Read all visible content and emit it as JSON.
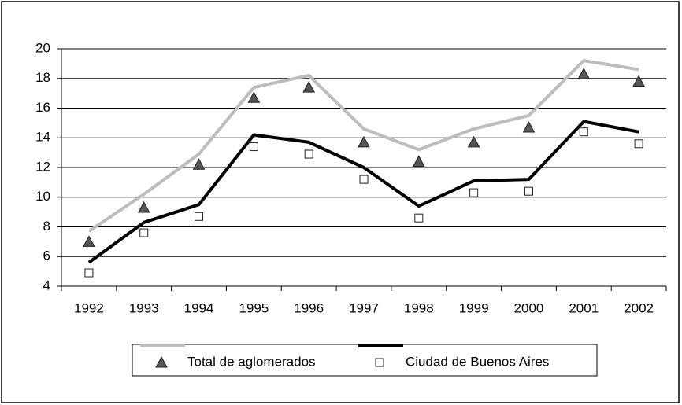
{
  "chart_data": {
    "type": "line",
    "categories": [
      "1992",
      "1993",
      "1994",
      "1995",
      "1996",
      "1997",
      "1998",
      "1999",
      "2000",
      "2001",
      "2002"
    ],
    "series": [
      {
        "color": "#bdbdbd",
        "values": [
          7.7,
          10.2,
          12.9,
          17.4,
          18.2,
          14.6,
          13.2,
          14.6,
          15.5,
          19.2,
          18.6
        ]
      },
      {
        "color": "#000000",
        "values": [
          5.6,
          8.3,
          9.5,
          14.2,
          13.7,
          12.0,
          9.4,
          11.1,
          11.2,
          15.1,
          14.4
        ]
      },
      {
        "name": "Total de aglomerados",
        "marker": "triangle",
        "color": "#555555",
        "values": [
          7.0,
          9.3,
          12.2,
          16.7,
          17.4,
          13.7,
          12.4,
          13.7,
          14.7,
          18.3,
          17.8
        ]
      },
      {
        "name": "Ciudad de Buenos Aires",
        "marker": "square",
        "color": "#ffffff",
        "values": [
          4.9,
          7.6,
          8.7,
          13.4,
          12.9,
          11.2,
          8.6,
          10.3,
          10.4,
          14.4,
          13.6
        ]
      }
    ],
    "ylim": [
      4,
      20
    ],
    "yticks": [
      4,
      6,
      8,
      10,
      12,
      14,
      16,
      18,
      20
    ],
    "grid": true
  }
}
